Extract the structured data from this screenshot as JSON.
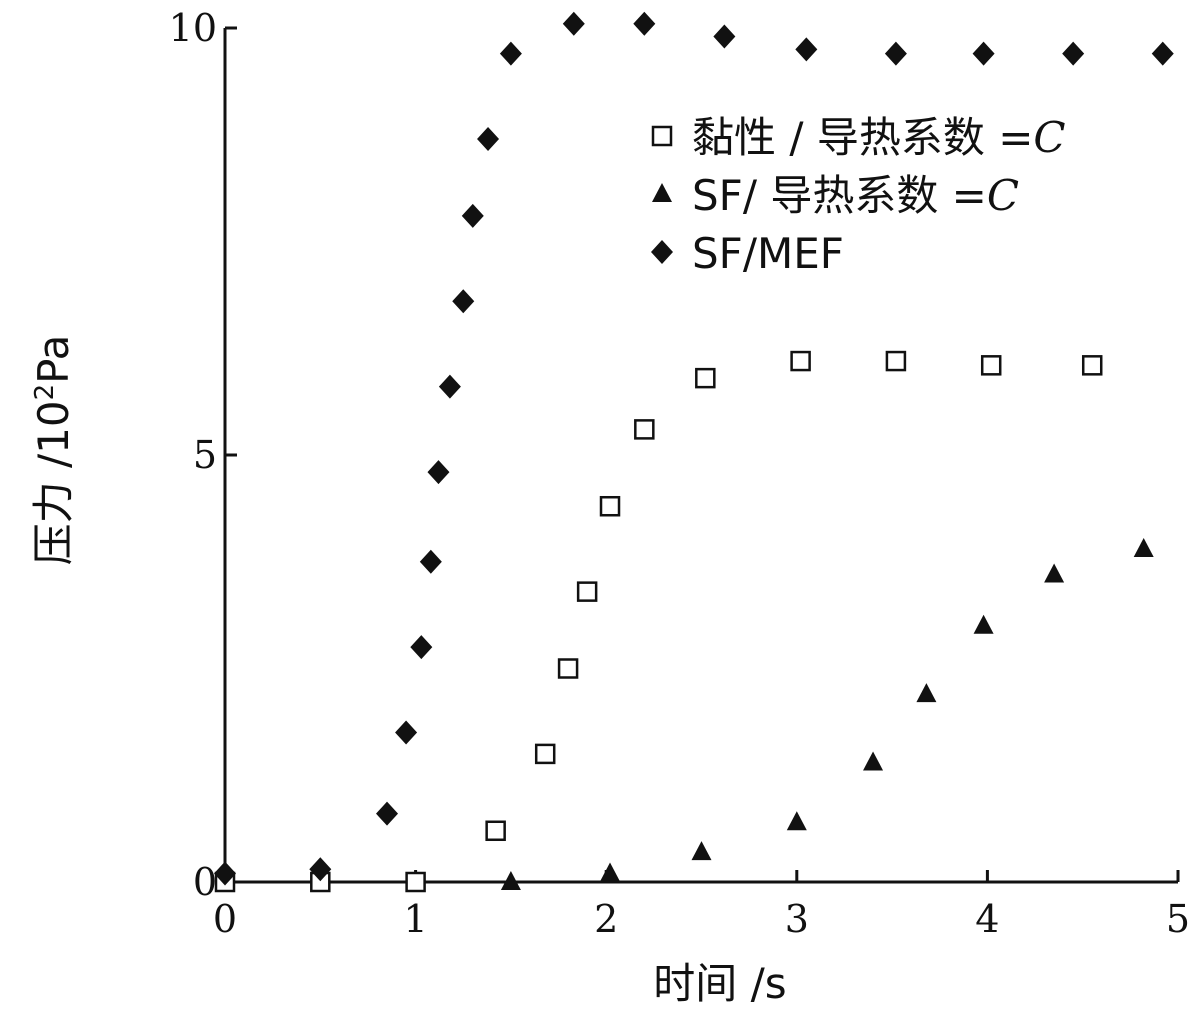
{
  "chart_data": {
    "type": "scatter",
    "xlabel": "时间 /s",
    "ylabel": "压力 /10",
    "ylabel_sup": "2",
    "ylabel_unit": "Pa",
    "xlim": [
      0,
      5
    ],
    "ylim": [
      0,
      10
    ],
    "x_ticks": [
      0,
      1,
      2,
      3,
      4,
      5
    ],
    "y_ticks": [
      0,
      5,
      10
    ],
    "x_tick_labels": [
      "0",
      "1",
      "2",
      "3",
      "4",
      "5"
    ],
    "y_tick_labels": [
      "0",
      "5",
      "10"
    ],
    "grid": false,
    "legend_position": "top-right",
    "series": [
      {
        "name": "黏性 / 导热系数 =C",
        "legend_main": "黏性 / 导热系数 =",
        "legend_ital": "C",
        "marker": "open-square",
        "color": "#111111",
        "points": [
          [
            0,
            0
          ],
          [
            0.5,
            0
          ],
          [
            1.0,
            0
          ],
          [
            1.42,
            0.6
          ],
          [
            1.68,
            1.5
          ],
          [
            1.8,
            2.5
          ],
          [
            1.9,
            3.4
          ],
          [
            2.02,
            4.4
          ],
          [
            2.2,
            5.3
          ],
          [
            2.52,
            5.9
          ],
          [
            3.02,
            6.1
          ],
          [
            3.52,
            6.1
          ],
          [
            4.02,
            6.05
          ],
          [
            4.55,
            6.05
          ]
        ]
      },
      {
        "name": "SF/ 导热系数 =C",
        "legend_main": "SF/ 导热系数 =",
        "legend_ital": "C",
        "marker": "filled-triangle",
        "color": "#111111",
        "points": [
          [
            1.5,
            0
          ],
          [
            2.02,
            0.1
          ],
          [
            2.5,
            0.35
          ],
          [
            3.0,
            0.7
          ],
          [
            3.4,
            1.4
          ],
          [
            3.68,
            2.2
          ],
          [
            3.98,
            3.0
          ],
          [
            4.35,
            3.6
          ],
          [
            4.82,
            3.9
          ]
        ]
      },
      {
        "name": "SF/MEF",
        "legend_main": "SF/MEF",
        "legend_ital": "",
        "marker": "filled-diamond",
        "color": "#111111",
        "points": [
          [
            0,
            0.1
          ],
          [
            0.5,
            0.15
          ],
          [
            0.85,
            0.8
          ],
          [
            0.95,
            1.75
          ],
          [
            1.03,
            2.75
          ],
          [
            1.08,
            3.75
          ],
          [
            1.12,
            4.8
          ],
          [
            1.18,
            5.8
          ],
          [
            1.25,
            6.8
          ],
          [
            1.3,
            7.8
          ],
          [
            1.38,
            8.7
          ],
          [
            1.5,
            9.7
          ],
          [
            1.83,
            10.05
          ],
          [
            2.2,
            10.05
          ],
          [
            2.62,
            9.9
          ],
          [
            3.05,
            9.75
          ],
          [
            3.52,
            9.7
          ],
          [
            3.98,
            9.7
          ],
          [
            4.45,
            9.7
          ],
          [
            4.92,
            9.7
          ]
        ]
      }
    ]
  }
}
